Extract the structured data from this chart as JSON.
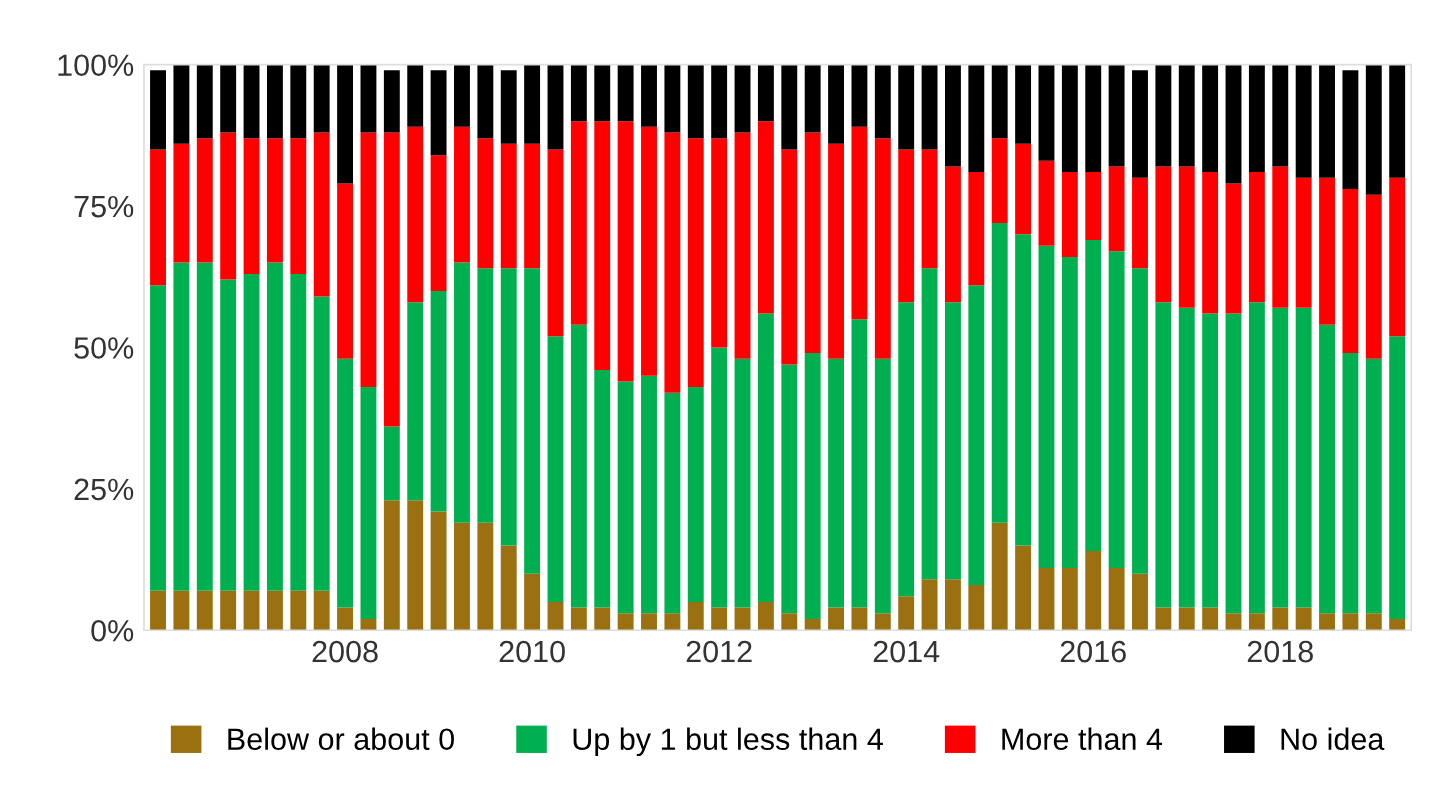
{
  "chart_data": {
    "type": "bar",
    "stacked": true,
    "legend": "bottom",
    "grid": false,
    "categories": [
      null,
      null,
      null,
      null,
      null,
      null,
      null,
      null,
      "2008",
      null,
      null,
      null,
      null,
      null,
      null,
      null,
      "2010",
      null,
      null,
      null,
      null,
      null,
      null,
      null,
      "2012",
      null,
      null,
      null,
      null,
      null,
      null,
      null,
      "2014",
      null,
      null,
      null,
      null,
      null,
      null,
      null,
      "2016",
      null,
      null,
      null,
      null,
      null,
      null,
      null,
      "2018",
      null,
      null,
      null,
      null,
      null
    ],
    "ylim": [
      0,
      100
    ],
    "yticks": [
      {
        "value": 0,
        "label": "0%"
      },
      {
        "value": 25,
        "label": "25%"
      },
      {
        "value": 50,
        "label": "50%"
      },
      {
        "value": 75,
        "label": "75%"
      },
      {
        "value": 100,
        "label": "100%"
      }
    ],
    "series": [
      {
        "name": "Below or about 0",
        "color": "#9a7010",
        "values": [
          7,
          7,
          7,
          7,
          7,
          7,
          7,
          7,
          4,
          2,
          23,
          23,
          21,
          19,
          19,
          15,
          10,
          5,
          4,
          4,
          3,
          3,
          3,
          5,
          4,
          4,
          5,
          3,
          2,
          4,
          4,
          3,
          6,
          9,
          9,
          8,
          19,
          15,
          11,
          11,
          14,
          11,
          10,
          4,
          4,
          4,
          3,
          3,
          4,
          4,
          3,
          3,
          3,
          2
        ]
      },
      {
        "name": "Up by 1 but less than 4",
        "color": "#00b050",
        "values": [
          54,
          58,
          58,
          55,
          56,
          58,
          56,
          52,
          44,
          41,
          13,
          35,
          39,
          46,
          45,
          49,
          54,
          47,
          50,
          42,
          41,
          42,
          39,
          38,
          46,
          44,
          51,
          44,
          47,
          44,
          51,
          45,
          52,
          55,
          49,
          53,
          53,
          55,
          57,
          55,
          55,
          56,
          54,
          54,
          53,
          52,
          53,
          55,
          53,
          53,
          51,
          46,
          45,
          50
        ]
      },
      {
        "name": "More than 4",
        "color": "#ff0000",
        "values": [
          24,
          21,
          22,
          26,
          24,
          22,
          24,
          29,
          31,
          45,
          52,
          31,
          24,
          24,
          23,
          22,
          22,
          33,
          36,
          44,
          46,
          44,
          46,
          44,
          37,
          40,
          34,
          38,
          39,
          38,
          34,
          39,
          27,
          21,
          24,
          20,
          15,
          16,
          15,
          15,
          12,
          15,
          16,
          24,
          25,
          25,
          23,
          23,
          25,
          23,
          26,
          29,
          29,
          28
        ]
      },
      {
        "name": "No idea",
        "color": "#000000",
        "values": [
          14,
          14,
          13,
          12,
          13,
          13,
          13,
          12,
          21,
          12,
          11,
          11,
          15,
          11,
          13,
          13,
          14,
          15,
          10,
          10,
          10,
          11,
          12,
          13,
          13,
          12,
          10,
          15,
          12,
          14,
          11,
          13,
          15,
          15,
          18,
          19,
          13,
          14,
          17,
          19,
          19,
          18,
          19,
          18,
          18,
          19,
          21,
          19,
          18,
          20,
          20,
          21,
          23,
          20
        ]
      }
    ]
  }
}
